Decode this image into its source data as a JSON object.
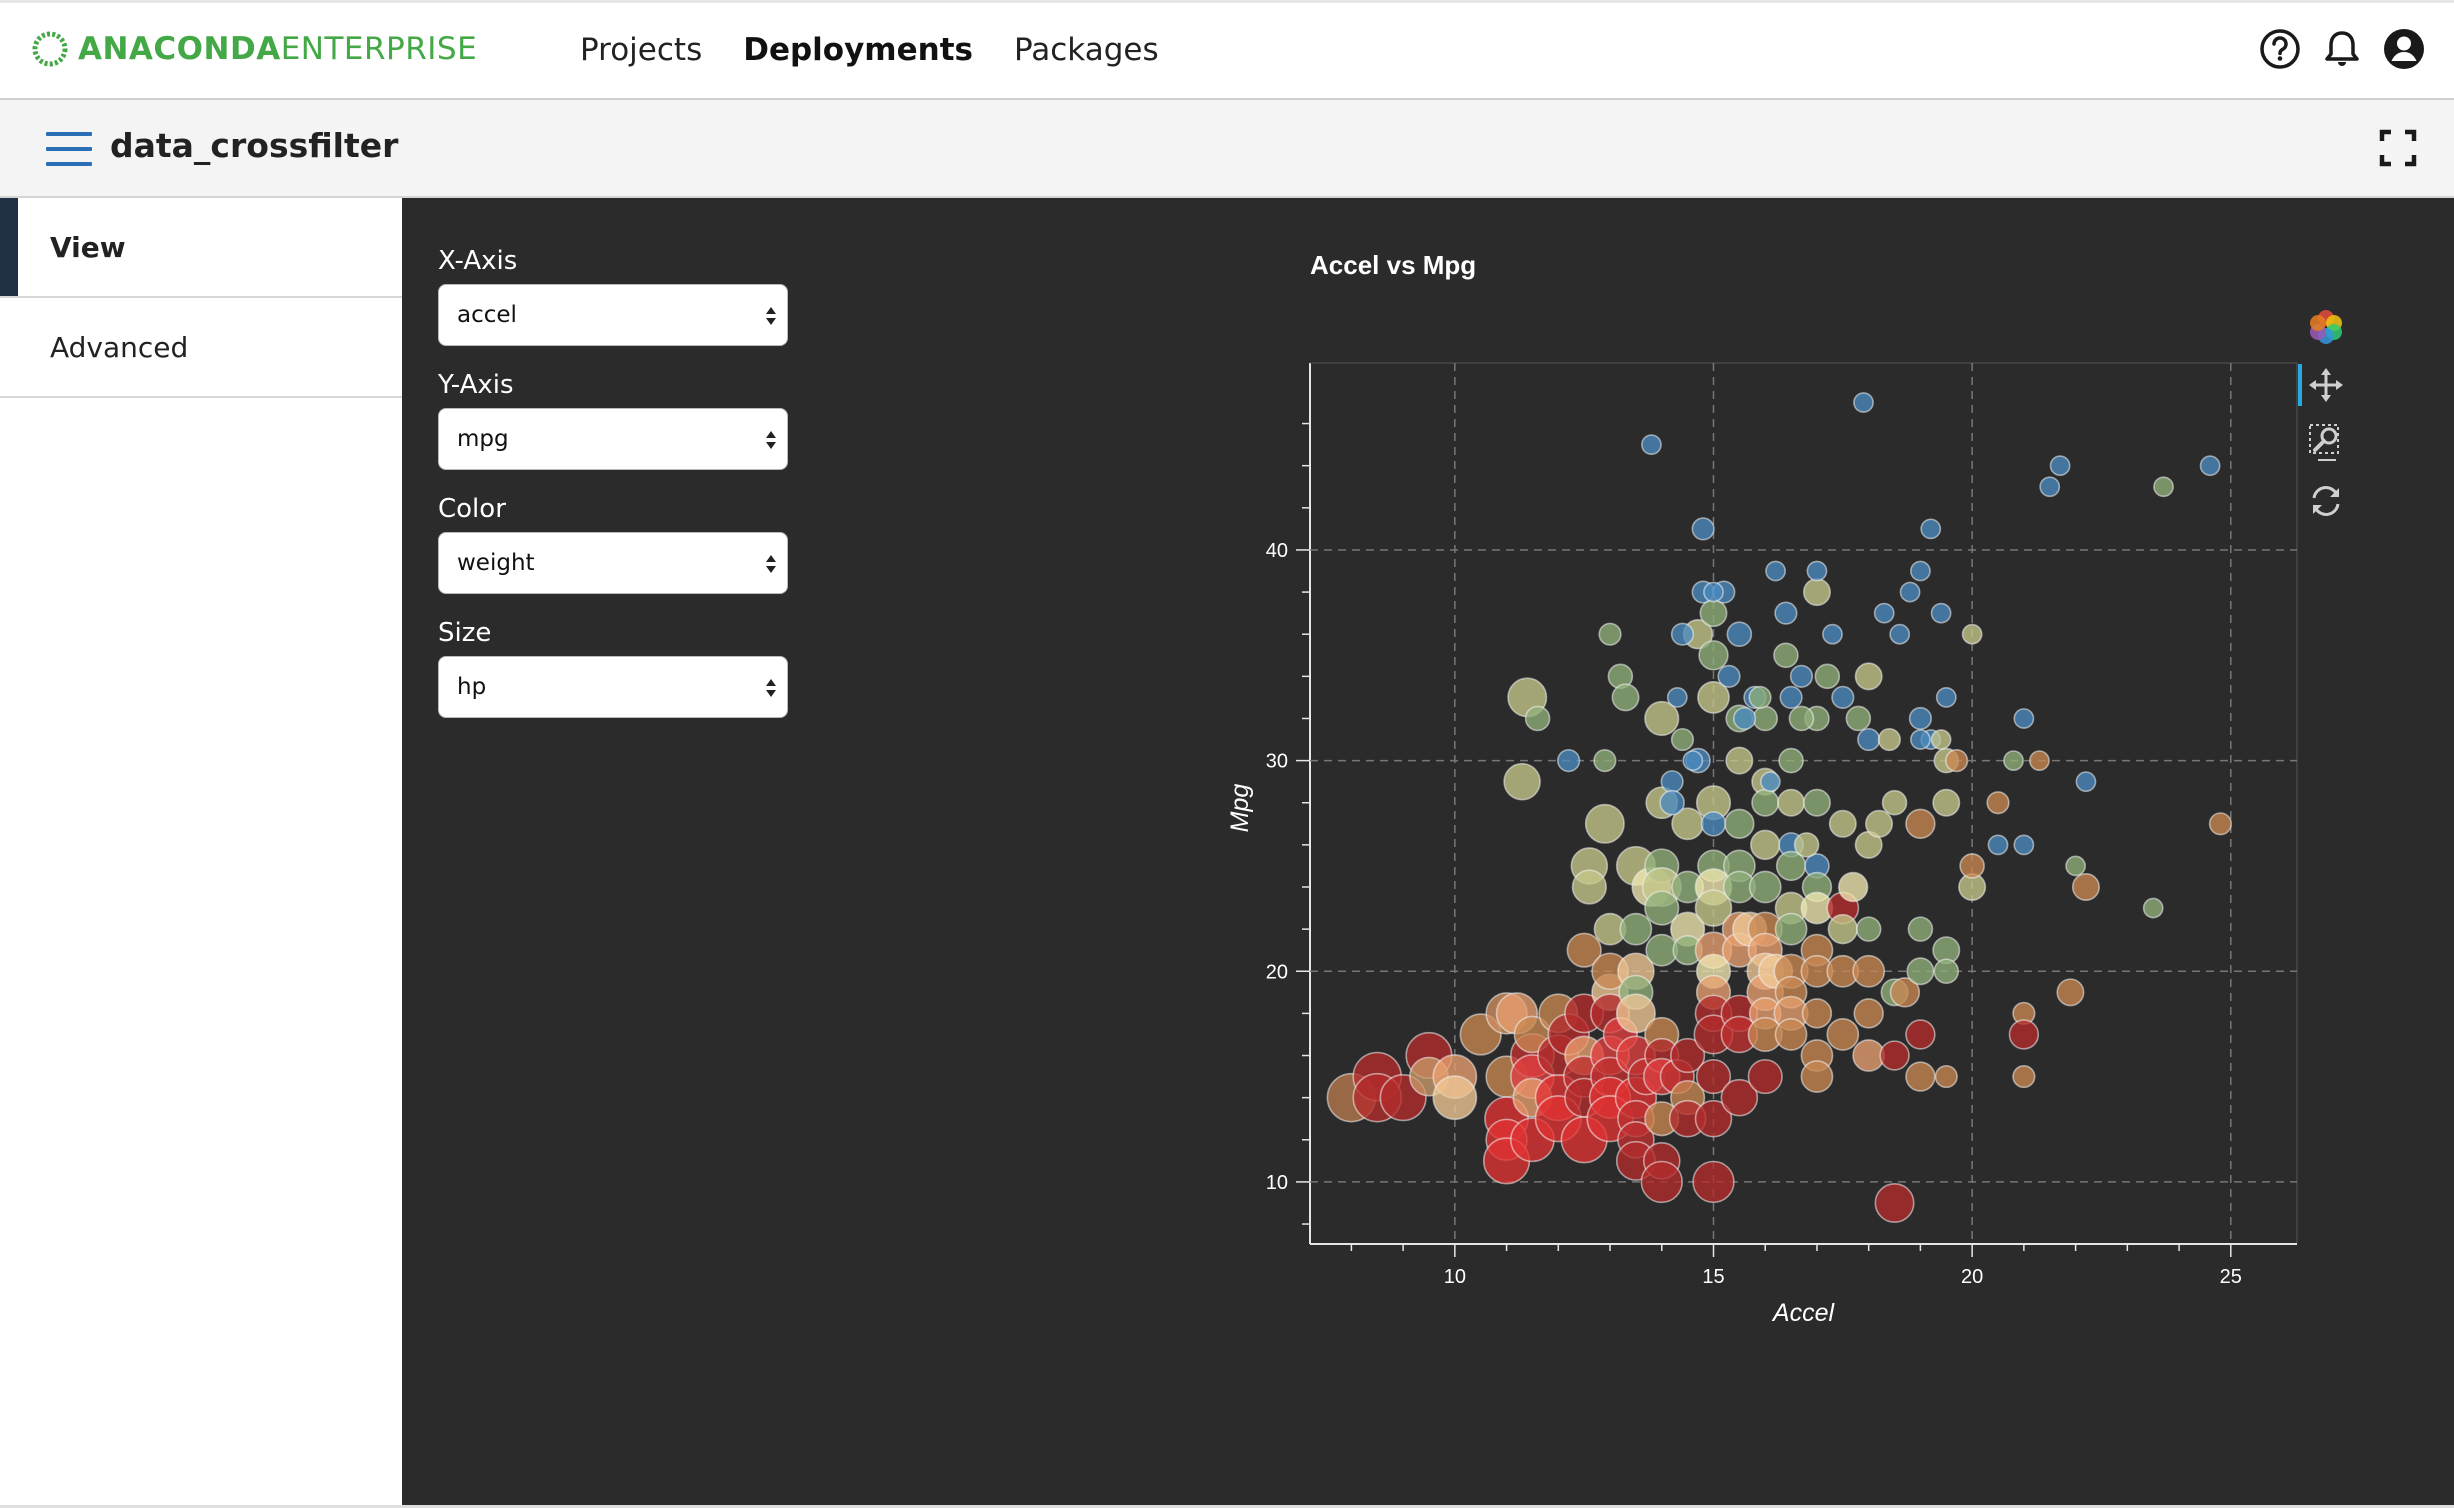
{
  "header": {
    "logo_bold": "ANACONDA",
    "logo_light": "ENTERPRISE",
    "nav": [
      {
        "label": "Projects",
        "active": false
      },
      {
        "label": "Deployments",
        "active": true
      },
      {
        "label": "Packages",
        "active": false
      }
    ],
    "icons": [
      "help-icon",
      "bell-icon",
      "user-avatar-icon"
    ]
  },
  "subheader": {
    "title": "data_crossfilter",
    "menu_icon": "hamburger-menu-icon",
    "fullscreen_icon": "fullscreen-icon"
  },
  "sidebar": {
    "tabs": [
      {
        "label": "View",
        "active": true
      },
      {
        "label": "Advanced",
        "active": false
      }
    ]
  },
  "controls": {
    "x_axis": {
      "label": "X-Axis",
      "value": "accel"
    },
    "y_axis": {
      "label": "Y-Axis",
      "value": "mpg"
    },
    "color": {
      "label": "Color",
      "value": "weight"
    },
    "size": {
      "label": "Size",
      "value": "hp"
    }
  },
  "toolbar": {
    "tools": [
      "bokeh-logo-icon",
      "pan-icon",
      "box-zoom-icon",
      "reset-icon"
    ],
    "active_tool": "pan-icon"
  },
  "colors": {
    "panel_bg": "#2b2b2b",
    "accent_green": "#44a846",
    "nav_blue": "#2a6fb5"
  },
  "chart_data": {
    "type": "scatter",
    "title": "Accel vs Mpg",
    "xlabel": "Accel",
    "ylabel": "Mpg",
    "xlim": [
      7.2,
      25.7
    ],
    "ylim": [
      7.1,
      48.4
    ],
    "xticks": [
      10,
      15,
      20,
      25
    ],
    "yticks": [
      10,
      20,
      30,
      40
    ],
    "grid": true,
    "color_encoding": "weight (dark red = heavy, yellow-green = mid, blue = light)",
    "size_encoding": "hp (larger circle = more horsepower)",
    "points": [
      [
        8.0,
        14,
        "#b87a50",
        2.0
      ],
      [
        8.5,
        15,
        "#b42b2b",
        2.0
      ],
      [
        8.5,
        14,
        "#b42b2b",
        2.0
      ],
      [
        9.0,
        14,
        "#b42b2b",
        1.9
      ],
      [
        9.5,
        16,
        "#b42b2b",
        1.9
      ],
      [
        9.5,
        15,
        "#c99a6a",
        1.6
      ],
      [
        10.0,
        15,
        "#e8a070",
        1.8
      ],
      [
        10.0,
        14,
        "#f0c896",
        1.8
      ],
      [
        10.5,
        17,
        "#c98852",
        1.7
      ],
      [
        11.0,
        18,
        "#d09060",
        1.7
      ],
      [
        11.0,
        15,
        "#c98852",
        1.7
      ],
      [
        11.0,
        13,
        "#e03232",
        1.8
      ],
      [
        11.0,
        12,
        "#e03232",
        1.7
      ],
      [
        11.0,
        11,
        "#e03232",
        1.9
      ],
      [
        11.2,
        18,
        "#e8a070",
        1.7
      ],
      [
        11.5,
        16,
        "#c03030",
        1.8
      ],
      [
        11.5,
        15,
        "#e04040",
        1.8
      ],
      [
        11.5,
        14,
        "#e8a070",
        1.6
      ],
      [
        11.5,
        12,
        "#e03232",
        1.8
      ],
      [
        11.5,
        17,
        "#c98852",
        1.5
      ],
      [
        12.0,
        18,
        "#c98852",
        1.6
      ],
      [
        12.0,
        16,
        "#b42b2b",
        1.7
      ],
      [
        12.0,
        14,
        "#e03232",
        1.9
      ],
      [
        12.0,
        13,
        "#e03232",
        1.9
      ],
      [
        12.2,
        17,
        "#b42b2b",
        1.7
      ],
      [
        12.5,
        18,
        "#b42b2b",
        1.6
      ],
      [
        12.5,
        16,
        "#e8a070",
        1.6
      ],
      [
        12.5,
        15,
        "#c03030",
        1.7
      ],
      [
        12.5,
        12,
        "#e03232",
        1.9
      ],
      [
        12.5,
        14,
        "#b42b2b",
        1.6
      ],
      [
        12.5,
        21,
        "#c98852",
        1.4
      ],
      [
        13.0,
        19,
        "#f0c896",
        1.5
      ],
      [
        13.0,
        18,
        "#b42b2b",
        1.6
      ],
      [
        13.0,
        16,
        "#e04040",
        1.6
      ],
      [
        13.0,
        15,
        "#c03030",
        1.6
      ],
      [
        13.0,
        14,
        "#e03232",
        1.7
      ],
      [
        13.0,
        13,
        "#e03232",
        1.9
      ],
      [
        13.0,
        20,
        "#c98852",
        1.5
      ],
      [
        13.0,
        22,
        "#c7c88a",
        1.3
      ],
      [
        13.2,
        17,
        "#e04040",
        1.4
      ],
      [
        13.5,
        20,
        "#f0c896",
        1.5
      ],
      [
        13.5,
        19,
        "#8fb07a",
        1.4
      ],
      [
        13.5,
        18,
        "#f0c896",
        1.6
      ],
      [
        13.5,
        16,
        "#e04040",
        1.6
      ],
      [
        13.5,
        14,
        "#e03232",
        1.7
      ],
      [
        13.5,
        13,
        "#c03030",
        1.5
      ],
      [
        13.5,
        12,
        "#c03030",
        1.5
      ],
      [
        13.5,
        11,
        "#b42b2b",
        1.6
      ],
      [
        13.5,
        25,
        "#c7c88a",
        1.6
      ],
      [
        13.5,
        22,
        "#8fb07a",
        1.3
      ],
      [
        13.7,
        15,
        "#c03030",
        1.5
      ],
      [
        13.8,
        24,
        "#f0e8b0",
        1.6
      ],
      [
        14.0,
        25,
        "#8fb07a",
        1.4
      ],
      [
        14.0,
        24,
        "#c7c88a",
        1.6
      ],
      [
        14.0,
        23,
        "#8fb07a",
        1.4
      ],
      [
        14.0,
        21,
        "#8fb07a",
        1.3
      ],
      [
        14.0,
        17,
        "#c98852",
        1.4
      ],
      [
        14.0,
        16,
        "#b42b2b",
        1.4
      ],
      [
        14.0,
        15,
        "#e04040",
        1.5
      ],
      [
        14.0,
        13,
        "#c98852",
        1.4
      ],
      [
        14.0,
        11,
        "#b42b2b",
        1.5
      ],
      [
        14.0,
        10,
        "#b42b2b",
        1.7
      ],
      [
        14.0,
        32,
        "#c7c88a",
        1.4
      ],
      [
        14.0,
        28,
        "#c7c88a",
        1.3
      ],
      [
        14.3,
        15,
        "#c03030",
        1.4
      ],
      [
        14.5,
        27,
        "#c7c88a",
        1.3
      ],
      [
        14.5,
        24,
        "#8fb07a",
        1.3
      ],
      [
        14.5,
        22,
        "#f0e8b0",
        1.4
      ],
      [
        14.5,
        21,
        "#8fb07a",
        1.2
      ],
      [
        14.5,
        16,
        "#b42b2b",
        1.4
      ],
      [
        14.5,
        14,
        "#c98852",
        1.4
      ],
      [
        14.5,
        13,
        "#b42b2b",
        1.5
      ],
      [
        14.7,
        36,
        "#c7c88a",
        1.2
      ],
      [
        14.7,
        30,
        "#4a8abf",
        1.0
      ],
      [
        14.8,
        38,
        "#4a8abf",
        0.9
      ],
      [
        14.8,
        41,
        "#4a8abf",
        0.9
      ],
      [
        15.0,
        37,
        "#8fb07a",
        1.1
      ],
      [
        15.0,
        35,
        "#8fb07a",
        1.2
      ],
      [
        15.0,
        33,
        "#c7c88a",
        1.3
      ],
      [
        15.0,
        28,
        "#c7c88a",
        1.4
      ],
      [
        15.0,
        27,
        "#4a8abf",
        1.0
      ],
      [
        15.0,
        25,
        "#8fb07a",
        1.3
      ],
      [
        15.0,
        24,
        "#f0e8b0",
        1.5
      ],
      [
        15.0,
        23,
        "#c7c88a",
        1.5
      ],
      [
        15.0,
        21,
        "#e8a070",
        1.5
      ],
      [
        15.0,
        20,
        "#f0e8b0",
        1.4
      ],
      [
        15.0,
        19,
        "#e8a070",
        1.4
      ],
      [
        15.0,
        18,
        "#b42b2b",
        1.5
      ],
      [
        15.0,
        17,
        "#b42b2b",
        1.6
      ],
      [
        15.0,
        15,
        "#b42b2b",
        1.4
      ],
      [
        15.0,
        13,
        "#b42b2b",
        1.5
      ],
      [
        15.0,
        10,
        "#b42b2b",
        1.7
      ],
      [
        15.2,
        38,
        "#4a8abf",
        0.9
      ],
      [
        15.3,
        34,
        "#4a8abf",
        0.9
      ],
      [
        15.5,
        36,
        "#4a8abf",
        1.0
      ],
      [
        15.5,
        32,
        "#8fb07a",
        1.1
      ],
      [
        15.5,
        30,
        "#c7c88a",
        1.1
      ],
      [
        15.5,
        27,
        "#8fb07a",
        1.2
      ],
      [
        15.5,
        25,
        "#8fb07a",
        1.3
      ],
      [
        15.5,
        24,
        "#8fb07a",
        1.3
      ],
      [
        15.5,
        22,
        "#e8a070",
        1.4
      ],
      [
        15.5,
        21,
        "#e8a070",
        1.4
      ],
      [
        15.5,
        18,
        "#b42b2b",
        1.5
      ],
      [
        15.5,
        17,
        "#c03030",
        1.5
      ],
      [
        15.5,
        14,
        "#b42b2b",
        1.5
      ],
      [
        15.7,
        22,
        "#f0c896",
        1.4
      ],
      [
        15.8,
        33,
        "#4a8abf",
        0.9
      ],
      [
        16.0,
        32,
        "#8fb07a",
        1.0
      ],
      [
        16.0,
        29,
        "#c7c88a",
        1.1
      ],
      [
        16.0,
        28,
        "#8fb07a",
        1.1
      ],
      [
        16.0,
        26,
        "#c7c88a",
        1.2
      ],
      [
        16.0,
        24,
        "#8fb07a",
        1.3
      ],
      [
        16.0,
        22,
        "#c98852",
        1.4
      ],
      [
        16.0,
        21,
        "#e8a070",
        1.4
      ],
      [
        16.0,
        20,
        "#f0c896",
        1.5
      ],
      [
        16.0,
        19,
        "#e8a070",
        1.5
      ],
      [
        16.0,
        18,
        "#e8a070",
        1.3
      ],
      [
        16.0,
        17,
        "#c98852",
        1.4
      ],
      [
        16.0,
        15,
        "#b42b2b",
        1.4
      ],
      [
        16.2,
        20,
        "#f0c896",
        1.4
      ],
      [
        16.4,
        37,
        "#4a8abf",
        0.9
      ],
      [
        16.4,
        35,
        "#8fb07a",
        1.0
      ],
      [
        16.5,
        33,
        "#4a8abf",
        0.9
      ],
      [
        16.5,
        30,
        "#8fb07a",
        1.0
      ],
      [
        16.5,
        28,
        "#c7c88a",
        1.1
      ],
      [
        16.5,
        26,
        "#4a8abf",
        1.0
      ],
      [
        16.5,
        25,
        "#8fb07a",
        1.2
      ],
      [
        16.5,
        23,
        "#c7c88a",
        1.3
      ],
      [
        16.5,
        22,
        "#8fb07a",
        1.3
      ],
      [
        16.5,
        20,
        "#c98852",
        1.4
      ],
      [
        16.5,
        19,
        "#c98852",
        1.3
      ],
      [
        16.5,
        18,
        "#e8a070",
        1.4
      ],
      [
        16.5,
        17,
        "#c98852",
        1.3
      ],
      [
        16.7,
        34,
        "#4a8abf",
        0.9
      ],
      [
        17.0,
        38,
        "#c7c88a",
        1.1
      ],
      [
        17.0,
        32,
        "#8fb07a",
        1.0
      ],
      [
        17.0,
        28,
        "#8fb07a",
        1.1
      ],
      [
        17.0,
        25,
        "#4a8abf",
        1.0
      ],
      [
        17.0,
        24,
        "#8fb07a",
        1.2
      ],
      [
        17.0,
        23,
        "#f0e8b0",
        1.3
      ],
      [
        17.0,
        21,
        "#c98852",
        1.3
      ],
      [
        17.0,
        20,
        "#c98852",
        1.3
      ],
      [
        17.0,
        18,
        "#c98852",
        1.2
      ],
      [
        17.0,
        16,
        "#c98852",
        1.3
      ],
      [
        17.0,
        15,
        "#c98852",
        1.3
      ],
      [
        17.2,
        34,
        "#8fb07a",
        1.0
      ],
      [
        17.5,
        33,
        "#4a8abf",
        0.9
      ],
      [
        17.5,
        27,
        "#c7c88a",
        1.1
      ],
      [
        17.5,
        23,
        "#b42b2b",
        1.3
      ],
      [
        17.5,
        22,
        "#c7c88a",
        1.2
      ],
      [
        17.5,
        20,
        "#c98852",
        1.3
      ],
      [
        17.5,
        17,
        "#c98852",
        1.3
      ],
      [
        17.7,
        24,
        "#f0e8b0",
        1.2
      ],
      [
        18.0,
        34,
        "#c7c88a",
        1.1
      ],
      [
        18.0,
        31,
        "#4a8abf",
        0.9
      ],
      [
        18.0,
        26,
        "#c7c88a",
        1.1
      ],
      [
        18.0,
        22,
        "#8fb07a",
        1.0
      ],
      [
        18.0,
        20,
        "#c98852",
        1.3
      ],
      [
        18.0,
        18,
        "#c98852",
        1.2
      ],
      [
        18.0,
        16,
        "#e8a070",
        1.3
      ],
      [
        18.2,
        27,
        "#c7c88a",
        1.1
      ],
      [
        18.5,
        28,
        "#c7c88a",
        1.0
      ],
      [
        18.5,
        19,
        "#8fb07a",
        1.1
      ],
      [
        18.5,
        16,
        "#b42b2b",
        1.2
      ],
      [
        18.5,
        9,
        "#b42b2b",
        1.6
      ],
      [
        18.7,
        19,
        "#c98852",
        1.2
      ],
      [
        19.0,
        39,
        "#4a8abf",
        0.8
      ],
      [
        19.0,
        32,
        "#4a8abf",
        0.9
      ],
      [
        19.0,
        27,
        "#c98852",
        1.2
      ],
      [
        19.0,
        22,
        "#8fb07a",
        1.0
      ],
      [
        19.0,
        20,
        "#8fb07a",
        1.1
      ],
      [
        19.0,
        17,
        "#b42b2b",
        1.2
      ],
      [
        19.0,
        15,
        "#c98852",
        1.2
      ],
      [
        19.2,
        41,
        "#4a8abf",
        0.8
      ],
      [
        19.2,
        31,
        "#4a8abf",
        0.8
      ],
      [
        19.5,
        30,
        "#c7c88a",
        1.0
      ],
      [
        19.5,
        28,
        "#c7c88a",
        1.1
      ],
      [
        19.5,
        21,
        "#8fb07a",
        1.1
      ],
      [
        19.5,
        20,
        "#8fb07a",
        1.0
      ],
      [
        19.5,
        15,
        "#c98852",
        0.9
      ],
      [
        19.7,
        30,
        "#c98852",
        0.9
      ],
      [
        20.0,
        36,
        "#c7c88a",
        0.8
      ],
      [
        20.0,
        24,
        "#c7c88a",
        1.1
      ],
      [
        20.0,
        25,
        "#c98852",
        1.0
      ],
      [
        20.5,
        28,
        "#c98852",
        0.9
      ],
      [
        20.5,
        26,
        "#4a8abf",
        0.8
      ],
      [
        21.0,
        32,
        "#4a8abf",
        0.8
      ],
      [
        21.0,
        26,
        "#4a8abf",
        0.8
      ],
      [
        21.0,
        18,
        "#c98852",
        0.9
      ],
      [
        21.0,
        17,
        "#b42b2b",
        1.2
      ],
      [
        21.0,
        15,
        "#c98852",
        0.9
      ],
      [
        21.5,
        43,
        "#4a8abf",
        0.8
      ],
      [
        21.7,
        44,
        "#4a8abf",
        0.8
      ],
      [
        21.9,
        19,
        "#c98852",
        1.1
      ],
      [
        22.0,
        25,
        "#8fb07a",
        0.8
      ],
      [
        22.2,
        29,
        "#4a8abf",
        0.8
      ],
      [
        22.2,
        24,
        "#c98852",
        1.1
      ],
      [
        21.3,
        30,
        "#c98852",
        0.8
      ],
      [
        20.8,
        30,
        "#8fb07a",
        0.8
      ],
      [
        23.5,
        23,
        "#8fb07a",
        0.8
      ],
      [
        23.7,
        43,
        "#8fb07a",
        0.8
      ],
      [
        24.6,
        44,
        "#4a8abf",
        0.8
      ],
      [
        24.8,
        27,
        "#c98852",
        0.9
      ],
      [
        13.8,
        45,
        "#4a8abf",
        0.8
      ],
      [
        17.9,
        47,
        "#4a8abf",
        0.8
      ],
      [
        11.4,
        33,
        "#c7c88a",
        1.6
      ],
      [
        11.6,
        32,
        "#8fb07a",
        1.0
      ],
      [
        11.3,
        29,
        "#c7c88a",
        1.5
      ],
      [
        12.2,
        30,
        "#4a8abf",
        0.9
      ],
      [
        12.9,
        27,
        "#c7c88a",
        1.6
      ],
      [
        12.6,
        25,
        "#c7c88a",
        1.5
      ],
      [
        12.6,
        24,
        "#c7c88a",
        1.4
      ],
      [
        13.0,
        36,
        "#8fb07a",
        0.9
      ],
      [
        13.2,
        34,
        "#8fb07a",
        1.0
      ],
      [
        13.3,
        33,
        "#8fb07a",
        1.1
      ],
      [
        12.9,
        30,
        "#8fb07a",
        0.9
      ],
      [
        14.4,
        36,
        "#4a8abf",
        0.9
      ],
      [
        14.4,
        31,
        "#8fb07a",
        0.9
      ],
      [
        14.2,
        29,
        "#4a8abf",
        0.9
      ],
      [
        14.2,
        28,
        "#4a8abf",
        1.0
      ],
      [
        14.3,
        33,
        "#4a8abf",
        0.8
      ],
      [
        14.6,
        30,
        "#4a8abf",
        0.8
      ],
      [
        16.1,
        29,
        "#4a8abf",
        0.8
      ],
      [
        16.8,
        26,
        "#c7c88a",
        1.0
      ],
      [
        18.8,
        38,
        "#4a8abf",
        0.8
      ],
      [
        18.6,
        36,
        "#4a8abf",
        0.8
      ],
      [
        19.4,
        37,
        "#4a8abf",
        0.8
      ],
      [
        18.3,
        37,
        "#4a8abf",
        0.8
      ],
      [
        17.3,
        36,
        "#4a8abf",
        0.8
      ],
      [
        16.2,
        39,
        "#4a8abf",
        0.8
      ],
      [
        17.0,
        39,
        "#4a8abf",
        0.8
      ],
      [
        15.0,
        38,
        "#4a8abf",
        0.8
      ],
      [
        15.6,
        32,
        "#4a8abf",
        0.9
      ],
      [
        15.9,
        33,
        "#8fb07a",
        0.9
      ],
      [
        16.7,
        32,
        "#8fb07a",
        1.0
      ],
      [
        17.8,
        32,
        "#8fb07a",
        1.0
      ],
      [
        18.4,
        31,
        "#c7c88a",
        0.9
      ],
      [
        19.0,
        31,
        "#4a8abf",
        0.8
      ],
      [
        19.5,
        33,
        "#4a8abf",
        0.8
      ],
      [
        19.4,
        31,
        "#c7c88a",
        0.8
      ]
    ]
  }
}
